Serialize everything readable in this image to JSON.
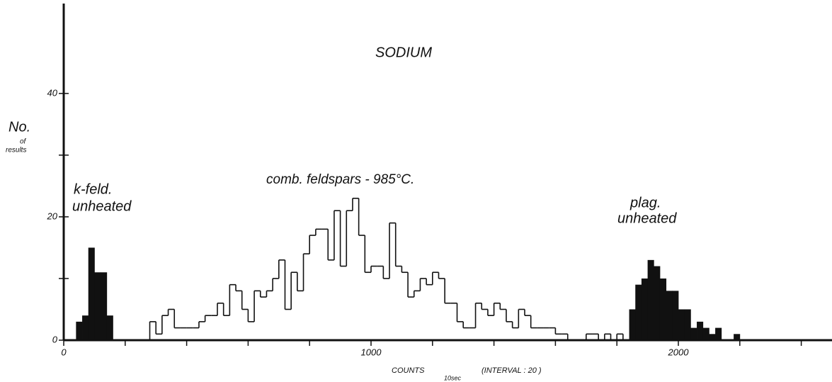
{
  "chart_data": {
    "type": "histogram",
    "title": "SODIUM",
    "ylabel_lines": [
      "No.",
      "of",
      "results"
    ],
    "xlabel": "COUNTS",
    "xlabel_sub": "10sec",
    "xlabel_note": "(INTERVAL : 20 )",
    "xlim": [
      0,
      2500
    ],
    "ylim": [
      0,
      54
    ],
    "xticks": [
      0,
      1000,
      2000
    ],
    "x_minor_ticks": [
      200,
      400,
      600,
      800,
      1200,
      1400,
      1600,
      1800,
      2200,
      2400
    ],
    "yticks": [
      0,
      20,
      40
    ],
    "y_minor_ticks": [
      10,
      30
    ],
    "series": [
      {
        "label_lines": [
          "k-feld.",
          "unheated"
        ],
        "color": "#111111",
        "filled": true,
        "bins": [
          40,
          60,
          80,
          100,
          120,
          140,
          160
        ],
        "values": [
          3,
          4,
          15,
          11,
          11,
          4
        ]
      },
      {
        "label_lines": [
          "comb. feldspars - 985°C."
        ],
        "color": "#111111",
        "filled": false,
        "bins": [
          280,
          300,
          320,
          340,
          360,
          380,
          400,
          420,
          440,
          460,
          480,
          500,
          520,
          540,
          560,
          580,
          600,
          620,
          640,
          660,
          680,
          700,
          720,
          740,
          760,
          780,
          800,
          820,
          840,
          860,
          880,
          900,
          920,
          940,
          960,
          980,
          1000,
          1020,
          1040,
          1060,
          1080,
          1100,
          1120,
          1140,
          1160,
          1180,
          1200,
          1220,
          1240,
          1260,
          1280,
          1300,
          1320,
          1340,
          1360,
          1380,
          1400,
          1420,
          1440,
          1460,
          1480,
          1500,
          1520,
          1540,
          1560,
          1580,
          1600,
          1620,
          1640,
          1660,
          1680,
          1700,
          1720,
          1740,
          1760,
          1780,
          1800,
          1820
        ],
        "values": [
          3,
          1,
          4,
          5,
          2,
          2,
          2,
          2,
          3,
          4,
          4,
          6,
          4,
          9,
          8,
          5,
          3,
          8,
          7,
          8,
          10,
          13,
          5,
          11,
          8,
          14,
          17,
          18,
          18,
          13,
          21,
          12,
          21,
          23,
          17,
          11,
          12,
          12,
          10,
          19,
          12,
          11,
          7,
          8,
          10,
          9,
          11,
          10,
          6,
          6,
          3,
          2,
          2,
          6,
          5,
          4,
          6,
          5,
          3,
          2,
          5,
          4,
          2,
          2,
          2,
          2,
          1,
          1,
          0,
          0,
          0,
          1,
          1,
          0,
          1,
          0,
          1
        ]
      },
      {
        "label_lines": [
          "plag.",
          "unheated"
        ],
        "color": "#111111",
        "filled": true,
        "bins": [
          1840,
          1860,
          1880,
          1900,
          1920,
          1940,
          1960,
          1980,
          2000,
          2020,
          2040,
          2060,
          2080,
          2100,
          2120,
          2140,
          2160,
          2180,
          2200
        ],
        "values": [
          5,
          9,
          10,
          13,
          12,
          10,
          8,
          8,
          5,
          5,
          2,
          3,
          2,
          1,
          2,
          0,
          0,
          1
        ]
      }
    ]
  }
}
